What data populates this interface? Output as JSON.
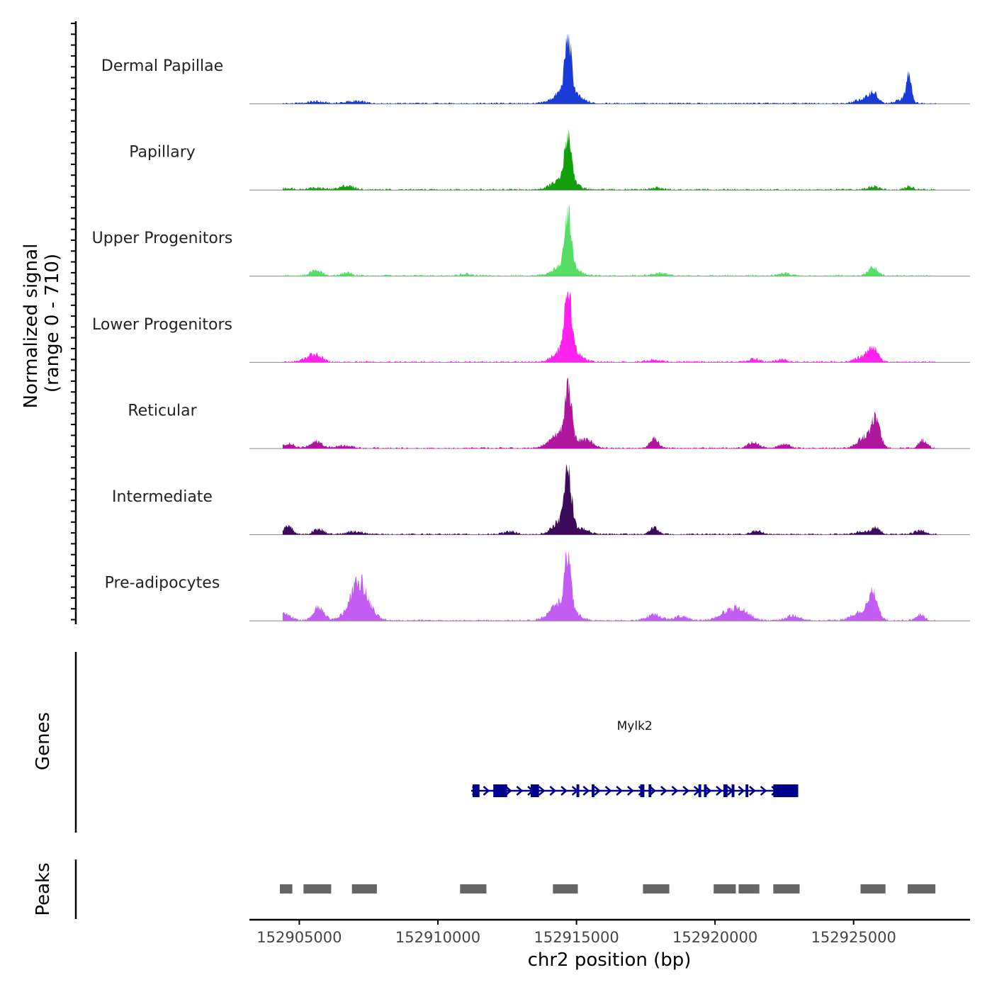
{
  "chart_data": {
    "type": "area",
    "chromosome": "chr2",
    "xlim": [
      152903200,
      152929200
    ],
    "data_xrange": [
      152904400,
      152928000
    ],
    "xticks": [
      152905000,
      152910000,
      152915000,
      152920000,
      152925000
    ],
    "xtick_labels": [
      "152905000",
      "152910000",
      "152915000",
      "152920000",
      "152925000"
    ],
    "xlabel": "chr2 position (bp)",
    "ylabel_line1": "Normalized signal",
    "ylabel_line2": "(range 0 - 710)",
    "ylim": [
      0,
      710
    ],
    "tracks": [
      {
        "name": "Dermal Papillae",
        "color": "#1a3bd6",
        "peaks": [
          [
            152905600,
            20,
            300
          ],
          [
            152907000,
            22,
            350
          ],
          [
            152914700,
            560,
            110
          ],
          [
            152914650,
            150,
            380
          ],
          [
            152925700,
            110,
            160
          ],
          [
            152925300,
            40,
            250
          ],
          [
            152927000,
            290,
            90
          ],
          [
            152926800,
            50,
            220
          ]
        ]
      },
      {
        "name": "Papillary",
        "color": "#13a00c",
        "peaks": [
          [
            152904600,
            15,
            200
          ],
          [
            152905600,
            20,
            300
          ],
          [
            152906700,
            40,
            250
          ],
          [
            152914700,
            470,
            120
          ],
          [
            152914550,
            110,
            380
          ],
          [
            152917900,
            20,
            200
          ],
          [
            152925700,
            30,
            200
          ],
          [
            152927000,
            30,
            150
          ]
        ]
      },
      {
        "name": "Upper Progenitors",
        "color": "#55dd66",
        "peaks": [
          [
            152905600,
            55,
            200
          ],
          [
            152906700,
            30,
            200
          ],
          [
            152911000,
            20,
            200
          ],
          [
            152914700,
            560,
            110
          ],
          [
            152914600,
            120,
            380
          ],
          [
            152918000,
            25,
            300
          ],
          [
            152925700,
            85,
            170
          ],
          [
            152922500,
            25,
            200
          ]
        ]
      },
      {
        "name": "Lower Progenitors",
        "color": "#ff22ee",
        "peaks": [
          [
            152905600,
            70,
            220
          ],
          [
            152905300,
            25,
            250
          ],
          [
            152914700,
            620,
            110
          ],
          [
            152914650,
            180,
            360
          ],
          [
            152917800,
            20,
            300
          ],
          [
            152921400,
            30,
            200
          ],
          [
            152922400,
            25,
            200
          ],
          [
            152925700,
            140,
            180
          ],
          [
            152925300,
            50,
            250
          ]
        ]
      },
      {
        "name": "Reticular",
        "color": "#b0159e",
        "peaks": [
          [
            152904600,
            45,
            200
          ],
          [
            152905600,
            70,
            220
          ],
          [
            152906600,
            25,
            300
          ],
          [
            152914700,
            530,
            110
          ],
          [
            152914500,
            170,
            380
          ],
          [
            152915400,
            70,
            250
          ],
          [
            152917800,
            100,
            150
          ],
          [
            152921400,
            60,
            200
          ],
          [
            152922500,
            40,
            200
          ],
          [
            152925800,
            280,
            160
          ],
          [
            152925400,
            110,
            250
          ],
          [
            152927500,
            80,
            150
          ]
        ]
      },
      {
        "name": "Intermediate",
        "color": "#3d0a5c",
        "peaks": [
          [
            152904600,
            90,
            150
          ],
          [
            152905700,
            55,
            180
          ],
          [
            152907000,
            25,
            300
          ],
          [
            152912600,
            30,
            200
          ],
          [
            152914700,
            540,
            110
          ],
          [
            152914550,
            170,
            320
          ],
          [
            152915300,
            40,
            200
          ],
          [
            152917800,
            70,
            150
          ],
          [
            152921500,
            35,
            200
          ],
          [
            152925800,
            70,
            160
          ],
          [
            152925300,
            30,
            200
          ],
          [
            152927400,
            40,
            200
          ]
        ]
      },
      {
        "name": "Pre-adipocytes",
        "color": "#c25cf2",
        "peaks": [
          [
            152904500,
            70,
            200
          ],
          [
            152905700,
            140,
            180
          ],
          [
            152906600,
            40,
            250
          ],
          [
            152907100,
            310,
            250
          ],
          [
            152907400,
            140,
            300
          ],
          [
            152914700,
            530,
            110
          ],
          [
            152914500,
            190,
            380
          ],
          [
            152917800,
            60,
            250
          ],
          [
            152918800,
            40,
            250
          ],
          [
            152920500,
            90,
            350
          ],
          [
            152921000,
            80,
            300
          ],
          [
            152922800,
            50,
            250
          ],
          [
            152925700,
            300,
            170
          ],
          [
            152925200,
            80,
            300
          ],
          [
            152927400,
            60,
            150
          ]
        ]
      }
    ],
    "genes": [
      {
        "name": "Mylk2",
        "start": 152911200,
        "end": 152923000,
        "strand": "+",
        "color": "#00008b",
        "exons": [
          [
            152911250,
            152911500
          ],
          [
            152912000,
            152912500
          ],
          [
            152913350,
            152913650
          ],
          [
            152915000,
            152915100
          ],
          [
            152915550,
            152915650
          ],
          [
            152917300,
            152917450
          ],
          [
            152917600,
            152917700
          ],
          [
            152919400,
            152919500
          ],
          [
            152919600,
            152919700
          ],
          [
            152920300,
            152920450
          ],
          [
            152920600,
            152920700
          ],
          [
            152921100,
            152921200
          ],
          [
            152922100,
            152923000
          ]
        ]
      }
    ],
    "peaks_track": {
      "color": "#666666",
      "regions": [
        [
          152904300,
          152904750
        ],
        [
          152905150,
          152906150
        ],
        [
          152906900,
          152907800
        ],
        [
          152910800,
          152911750
        ],
        [
          152914150,
          152915050
        ],
        [
          152917400,
          152918350
        ],
        [
          152919950,
          152920750
        ],
        [
          152920850,
          152921600
        ],
        [
          152922100,
          152923050
        ],
        [
          152925250,
          152926150
        ],
        [
          152926950,
          152927950
        ]
      ]
    },
    "panel_labels": {
      "genes": "Genes",
      "peaks": "Peaks"
    }
  }
}
